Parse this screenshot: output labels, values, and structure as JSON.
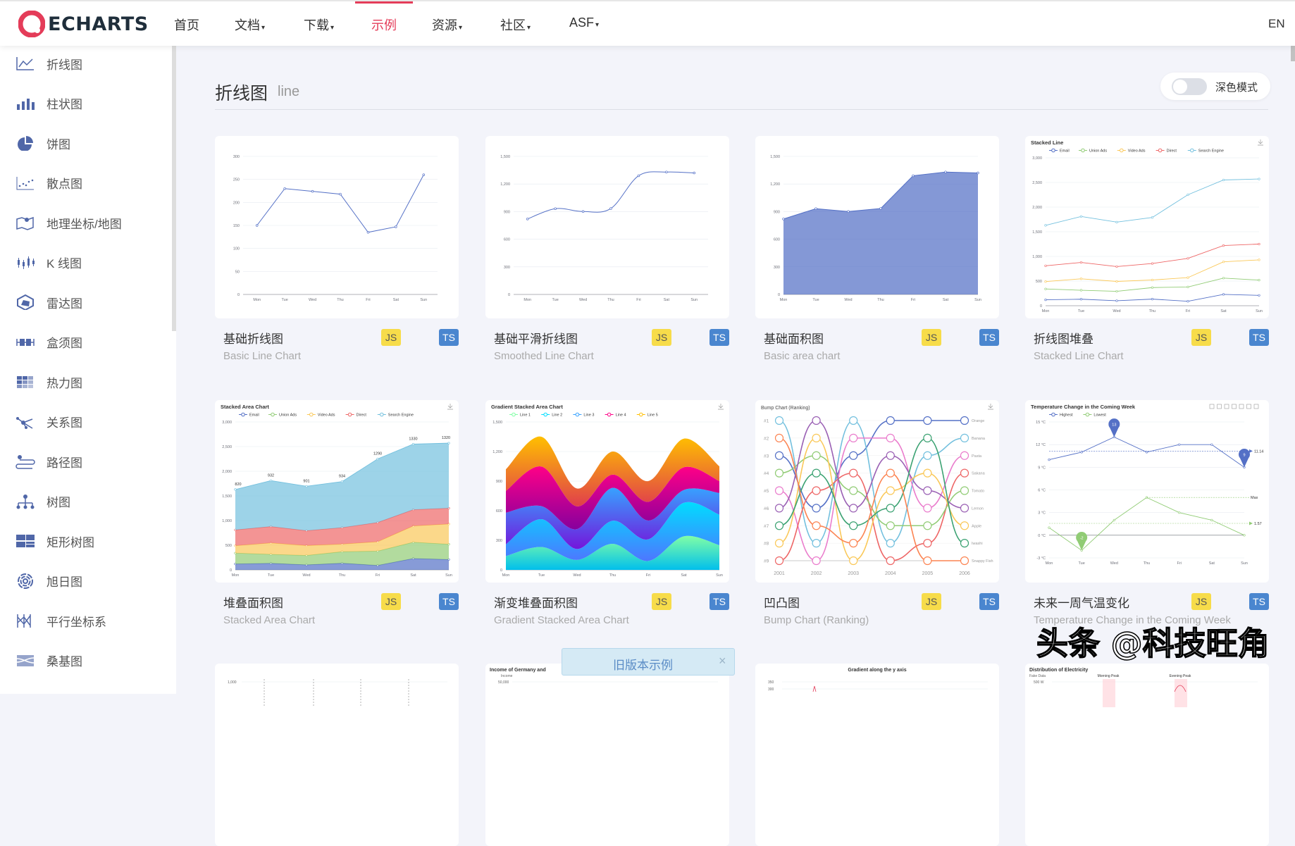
{
  "header": {
    "logo": "ECHARTS",
    "nav": [
      {
        "label": "首页",
        "dropdown": false
      },
      {
        "label": "文档",
        "dropdown": true
      },
      {
        "label": "下载",
        "dropdown": true
      },
      {
        "label": "示例",
        "dropdown": false,
        "active": true
      },
      {
        "label": "资源",
        "dropdown": true
      },
      {
        "label": "社区",
        "dropdown": true
      },
      {
        "label": "ASF",
        "dropdown": true
      }
    ],
    "caret": "▾",
    "lang": "EN",
    "accent": "#e43c59"
  },
  "sidebar": {
    "items": [
      {
        "label": "折线图",
        "icon": "line-chart-icon"
      },
      {
        "label": "柱状图",
        "icon": "bar-chart-icon"
      },
      {
        "label": "饼图",
        "icon": "pie-chart-icon"
      },
      {
        "label": "散点图",
        "icon": "scatter-icon"
      },
      {
        "label": "地理坐标/地图",
        "icon": "map-icon"
      },
      {
        "label": "K 线图",
        "icon": "candlestick-icon"
      },
      {
        "label": "雷达图",
        "icon": "radar-icon"
      },
      {
        "label": "盒须图",
        "icon": "boxplot-icon"
      },
      {
        "label": "热力图",
        "icon": "heatmap-icon"
      },
      {
        "label": "关系图",
        "icon": "graph-icon"
      },
      {
        "label": "路径图",
        "icon": "lines-icon"
      },
      {
        "label": "树图",
        "icon": "tree-icon"
      },
      {
        "label": "矩形树图",
        "icon": "treemap-icon"
      },
      {
        "label": "旭日图",
        "icon": "sunburst-icon"
      },
      {
        "label": "平行坐标系",
        "icon": "parallel-icon"
      },
      {
        "label": "桑基图",
        "icon": "sankey-icon"
      }
    ],
    "icon_color": "#5067a8"
  },
  "page": {
    "title": "折线图",
    "subtitle": "line",
    "dark_mode_label": "深色模式",
    "dark_mode": false
  },
  "cards": [
    {
      "title": "基础折线图",
      "subtitle": "Basic Line Chart",
      "js": "JS",
      "ts": "TS"
    },
    {
      "title": "基础平滑折线图",
      "subtitle": "Smoothed Line Chart",
      "js": "JS",
      "ts": "TS"
    },
    {
      "title": "基础面积图",
      "subtitle": "Basic area chart",
      "js": "JS",
      "ts": "TS"
    },
    {
      "title": "折线图堆叠",
      "subtitle": "Stacked Line Chart",
      "js": "JS",
      "ts": "TS"
    },
    {
      "title": "堆叠面积图",
      "subtitle": "Stacked Area Chart",
      "js": "JS",
      "ts": "TS"
    },
    {
      "title": "渐变堆叠面积图",
      "subtitle": "Gradient Stacked Area Chart",
      "js": "JS",
      "ts": "TS"
    },
    {
      "title": "凹凸图",
      "subtitle": "Bump Chart (Ranking)",
      "js": "JS",
      "ts": "TS"
    },
    {
      "title": "未来一周气温变化",
      "subtitle": "Temperature Change in the Coming Week",
      "js": "JS",
      "ts": "TS"
    }
  ],
  "chart_data": [
    {
      "type": "line",
      "categories": [
        "Mon",
        "Tue",
        "Wed",
        "Thu",
        "Fri",
        "Sat",
        "Sun"
      ],
      "values": [
        150,
        230,
        224,
        218,
        135,
        147,
        260
      ],
      "ylim": [
        0,
        300
      ],
      "ystep": 50,
      "smooth": false,
      "color": "#5470c6"
    },
    {
      "type": "line",
      "categories": [
        "Mon",
        "Tue",
        "Wed",
        "Thu",
        "Fri",
        "Sat",
        "Sun"
      ],
      "values": [
        820,
        932,
        901,
        934,
        1290,
        1330,
        1320
      ],
      "ylim": [
        0,
        1500
      ],
      "ystep": 300,
      "smooth": true,
      "color": "#5470c6"
    },
    {
      "type": "area",
      "categories": [
        "Mon",
        "Tue",
        "Wed",
        "Thu",
        "Fri",
        "Sat",
        "Sun"
      ],
      "values": [
        820,
        932,
        901,
        934,
        1290,
        1330,
        1320
      ],
      "ylim": [
        0,
        1500
      ],
      "ystep": 300,
      "color": "#5470c6"
    },
    {
      "type": "line",
      "stacked": true,
      "title": "Stacked Line",
      "legend": "top",
      "categories": [
        "Mon",
        "Tue",
        "Wed",
        "Thu",
        "Fri",
        "Sat",
        "Sun"
      ],
      "ylim": [
        0,
        3000
      ],
      "ystep": 500,
      "series": [
        {
          "name": "Email",
          "values": [
            120,
            132,
            101,
            134,
            90,
            230,
            210
          ],
          "color": "#5470c6"
        },
        {
          "name": "Union Ads",
          "values": [
            220,
            182,
            191,
            234,
            290,
            330,
            310
          ],
          "color": "#91cc75"
        },
        {
          "name": "Video Ads",
          "values": [
            150,
            232,
            201,
            154,
            190,
            330,
            410
          ],
          "color": "#fac858"
        },
        {
          "name": "Direct",
          "values": [
            320,
            332,
            301,
            334,
            390,
            330,
            320
          ],
          "color": "#ee6666"
        },
        {
          "name": "Search Engine",
          "values": [
            820,
            932,
            901,
            934,
            1290,
            1330,
            1320
          ],
          "color": "#73c0de"
        }
      ]
    },
    {
      "type": "area",
      "stacked": true,
      "title": "Stacked Area Chart",
      "legend": "top",
      "categories": [
        "Mon",
        "Tue",
        "Wed",
        "Thu",
        "Fri",
        "Sat",
        "Sun"
      ],
      "ylim": [
        0,
        3000
      ],
      "ystep": 500,
      "top_labels": true,
      "series": [
        {
          "name": "Email",
          "values": [
            120,
            132,
            101,
            134,
            90,
            230,
            210
          ],
          "color": "#5470c6"
        },
        {
          "name": "Union Ads",
          "values": [
            220,
            182,
            191,
            234,
            290,
            330,
            310
          ],
          "color": "#91cc75"
        },
        {
          "name": "Video Ads",
          "values": [
            150,
            232,
            201,
            154,
            190,
            330,
            410
          ],
          "color": "#fac858"
        },
        {
          "name": "Direct",
          "values": [
            320,
            332,
            301,
            334,
            390,
            330,
            320
          ],
          "color": "#ee6666"
        },
        {
          "name": "Search Engine",
          "values": [
            820,
            932,
            901,
            934,
            1290,
            1330,
            1320
          ],
          "color": "#73c0de"
        }
      ]
    },
    {
      "type": "area",
      "stacked": true,
      "smooth": true,
      "gradient": true,
      "title": "Gradient Stacked Area Chart",
      "legend": "top",
      "categories": [
        "Mon",
        "Tue",
        "Wed",
        "Thu",
        "Fri",
        "Sat",
        "Sun"
      ],
      "ylim": [
        0,
        1500
      ],
      "ystep": 300,
      "series": [
        {
          "name": "Line 1",
          "values": [
            140,
            232,
            101,
            264,
            90,
            340,
            250
          ],
          "colors": [
            "#80ffa5",
            "#01bfec"
          ]
        },
        {
          "name": "Line 2",
          "values": [
            120,
            282,
            111,
            234,
            220,
            340,
            310
          ],
          "colors": [
            "#00ddff",
            "#4d77ff"
          ]
        },
        {
          "name": "Line 3",
          "values": [
            320,
            132,
            201,
            334,
            190,
            130,
            220
          ],
          "colors": [
            "#37a2ff",
            "#7415db"
          ]
        },
        {
          "name": "Line 4",
          "values": [
            220,
            402,
            231,
            134,
            190,
            230,
            120
          ],
          "colors": [
            "#ff0087",
            "#87009d"
          ]
        },
        {
          "name": "Line 5",
          "values": [
            220,
            302,
            181,
            234,
            210,
            290,
            150
          ],
          "colors": [
            "#ffbf00",
            "#e03e4c"
          ]
        }
      ]
    },
    {
      "type": "line",
      "variant": "bump",
      "title": "Bump Chart (Ranking)",
      "categories": [
        "2001",
        "2002",
        "2003",
        "2004",
        "2005",
        "2006"
      ],
      "rank_labels": [
        "#1",
        "#2",
        "#3",
        "#4",
        "#5",
        "#6",
        "#7",
        "#8",
        "#9"
      ],
      "series": [
        {
          "name": "Orange",
          "ranks": [
            3,
            6,
            3,
            1,
            1,
            1
          ],
          "color": "#5470c6"
        },
        {
          "name": "Banana",
          "ranks": [
            1,
            8,
            1,
            8,
            3,
            2
          ],
          "color": "#73c0de"
        },
        {
          "name": "Pasta",
          "ranks": [
            5,
            9,
            2,
            2,
            6,
            3
          ],
          "color": "#ea7ccc"
        },
        {
          "name": "Sakana",
          "ranks": [
            9,
            5,
            4,
            9,
            8,
            4
          ],
          "color": "#ee6666"
        },
        {
          "name": "Tomato",
          "ranks": [
            4,
            3,
            5,
            7,
            7,
            5
          ],
          "color": "#91cc75"
        },
        {
          "name": "Lemon",
          "ranks": [
            6,
            1,
            6,
            3,
            5,
            6
          ],
          "color": "#9a60b4"
        },
        {
          "name": "Apple",
          "ranks": [
            8,
            2,
            9,
            5,
            4,
            7
          ],
          "color": "#fac858"
        },
        {
          "name": "Iwashi",
          "ranks": [
            7,
            4,
            7,
            6,
            2,
            8
          ],
          "color": "#3ba272"
        },
        {
          "name": "Snappy Fish",
          "ranks": [
            2,
            7,
            8,
            4,
            9,
            9
          ],
          "color": "#fc8452"
        }
      ]
    },
    {
      "type": "line",
      "variant": "temperature",
      "title": "Temperature Change in the Coming Week",
      "legend": "top",
      "categories": [
        "Mon",
        "Tue",
        "Wed",
        "Thu",
        "Fri",
        "Sat",
        "Sun"
      ],
      "ylim": [
        -3,
        15
      ],
      "ystep": 3,
      "yunit": " °C",
      "series": [
        {
          "name": "Highest",
          "values": [
            10,
            11,
            13,
            11,
            12,
            12,
            9
          ],
          "color": "#5470c6",
          "mark_points": [
            {
              "index": 2,
              "label": "13"
            },
            {
              "index": 6,
              "label": "9"
            }
          ],
          "avg_line": {
            "value": 11.14,
            "label": "11.14"
          }
        },
        {
          "name": "Lowest",
          "values": [
            1,
            -2,
            2,
            5,
            3,
            2,
            0
          ],
          "color": "#91cc75",
          "mark_points": [
            {
              "index": 1,
              "label": "-2"
            }
          ],
          "avg_line": {
            "value": 1.57,
            "label": "1.57"
          },
          "max_line": {
            "label": "Max"
          }
        }
      ]
    }
  ],
  "bottom_cards": [
    {
      "title": "",
      "ticks": [
        "1,000"
      ]
    },
    {
      "title": "Income of Germany and",
      "axis_name": "Income",
      "ticks": [
        "50,000"
      ]
    },
    {
      "title": "Gradient along the y axis",
      "ticks": [
        "350",
        "300"
      ]
    },
    {
      "title": "Distribution of Electricity",
      "axis_name": "Fake Data",
      "ticks": [
        "500 W"
      ],
      "marks": [
        "Morning Peak",
        "Evening Peak"
      ]
    }
  ],
  "banner": {
    "label": "旧版本示例",
    "close": "×"
  },
  "watermark": "头条 @科技旺角"
}
